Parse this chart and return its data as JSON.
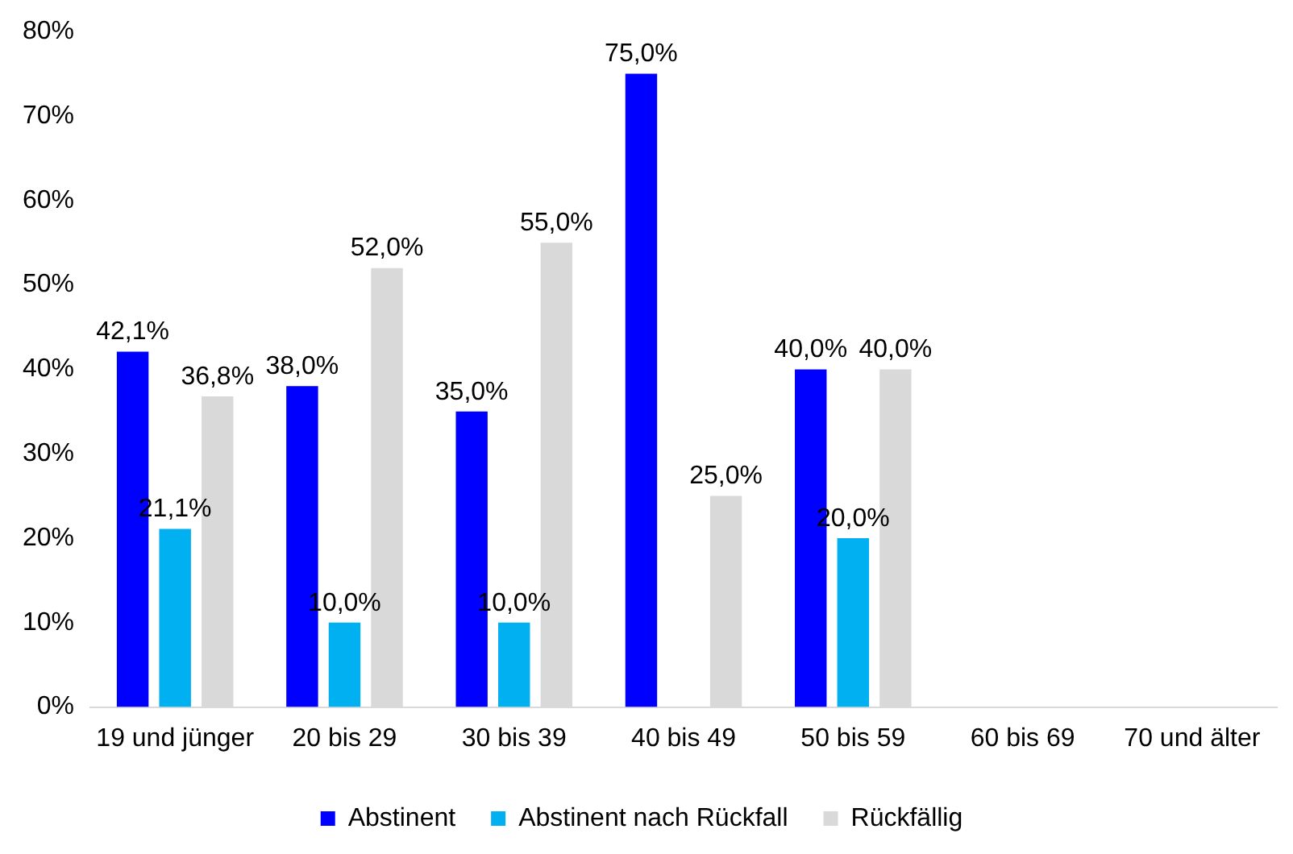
{
  "chart_data": {
    "type": "bar",
    "categories": [
      "19 und jünger",
      "20 bis 29",
      "30 bis 39",
      "40 bis 49",
      "50 bis 59",
      "60 bis 69",
      "70 und älter"
    ],
    "series": [
      {
        "name": "Abstinent",
        "color": "#0000ff",
        "values": [
          42.1,
          38,
          35,
          75,
          40,
          null,
          null
        ],
        "value_labels": [
          "42,1%",
          "38,0%",
          "35,0%",
          "75,0%",
          "40,0%",
          null,
          null
        ]
      },
      {
        "name": "Abstinent nach Rückfall",
        "color": "#00b0f0",
        "values": [
          21.1,
          10,
          10,
          null,
          20,
          null,
          null
        ],
        "value_labels": [
          "21,1%",
          "10,0%",
          "10,0%",
          null,
          "20,0%",
          null,
          null
        ]
      },
      {
        "name": "Rückfällig",
        "color": "#d9d9d9",
        "values": [
          36.8,
          52,
          55,
          25,
          40,
          null,
          null
        ],
        "value_labels": [
          "36,8%",
          "52,0%",
          "55,0%",
          "25,0%",
          "40,0%",
          null,
          null
        ]
      }
    ],
    "ylim": [
      0,
      80
    ],
    "yticks": [
      {
        "value": 0,
        "label": "0%"
      },
      {
        "value": 10,
        "label": "10%"
      },
      {
        "value": 20,
        "label": "20%"
      },
      {
        "value": 30,
        "label": "30%"
      },
      {
        "value": 40,
        "label": "40%"
      },
      {
        "value": 50,
        "label": "50%"
      },
      {
        "value": 60,
        "label": "60%"
      },
      {
        "value": 70,
        "label": "70%"
      },
      {
        "value": 80,
        "label": "80%"
      }
    ],
    "grid": false,
    "legend": "bottom"
  }
}
